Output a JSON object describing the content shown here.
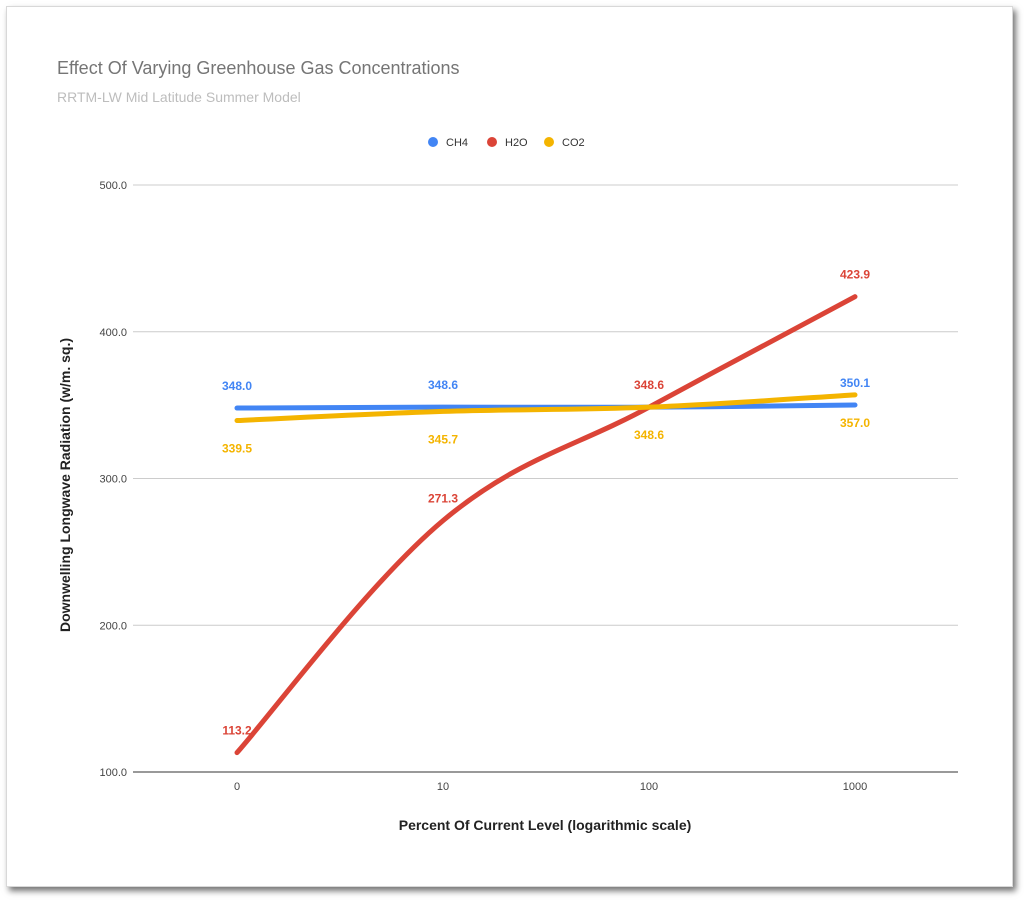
{
  "chart_data": {
    "type": "line",
    "title": "Effect Of Varying Greenhouse Gas Concentrations",
    "subtitle": "RRTM-LW Mid Latitude Summer Model",
    "xlabel": "Percent Of Current Level (logarithmic scale)",
    "ylabel": "Downwelling Longwave Radiation (w/m. sq.)",
    "categories": [
      "0",
      "10",
      "100",
      "1000"
    ],
    "ylim": [
      100,
      500
    ],
    "yticks": [
      "100.0",
      "200.0",
      "300.0",
      "400.0",
      "500.0"
    ],
    "legend_position": "top",
    "grid": true,
    "series": [
      {
        "name": "CH4",
        "color": "#4285f4",
        "values": [
          348.0,
          348.6,
          348.6,
          350.1
        ],
        "labels": [
          "348.0",
          "348.6",
          "",
          "350.1"
        ],
        "label_side": [
          "above",
          "above",
          "above",
          "above"
        ]
      },
      {
        "name": "H2O",
        "color": "#db4437",
        "values": [
          113.2,
          271.3,
          348.6,
          423.9
        ],
        "labels": [
          "113.2",
          "271.3",
          "348.6",
          "423.9"
        ],
        "label_side": [
          "above",
          "above",
          "above",
          "above"
        ]
      },
      {
        "name": "CO2",
        "color": "#f4b400",
        "values": [
          339.5,
          345.7,
          348.6,
          357.0
        ],
        "labels": [
          "339.5",
          "345.7",
          "348.6",
          "357.0"
        ],
        "label_side": [
          "below",
          "below",
          "below",
          "below"
        ]
      }
    ]
  }
}
